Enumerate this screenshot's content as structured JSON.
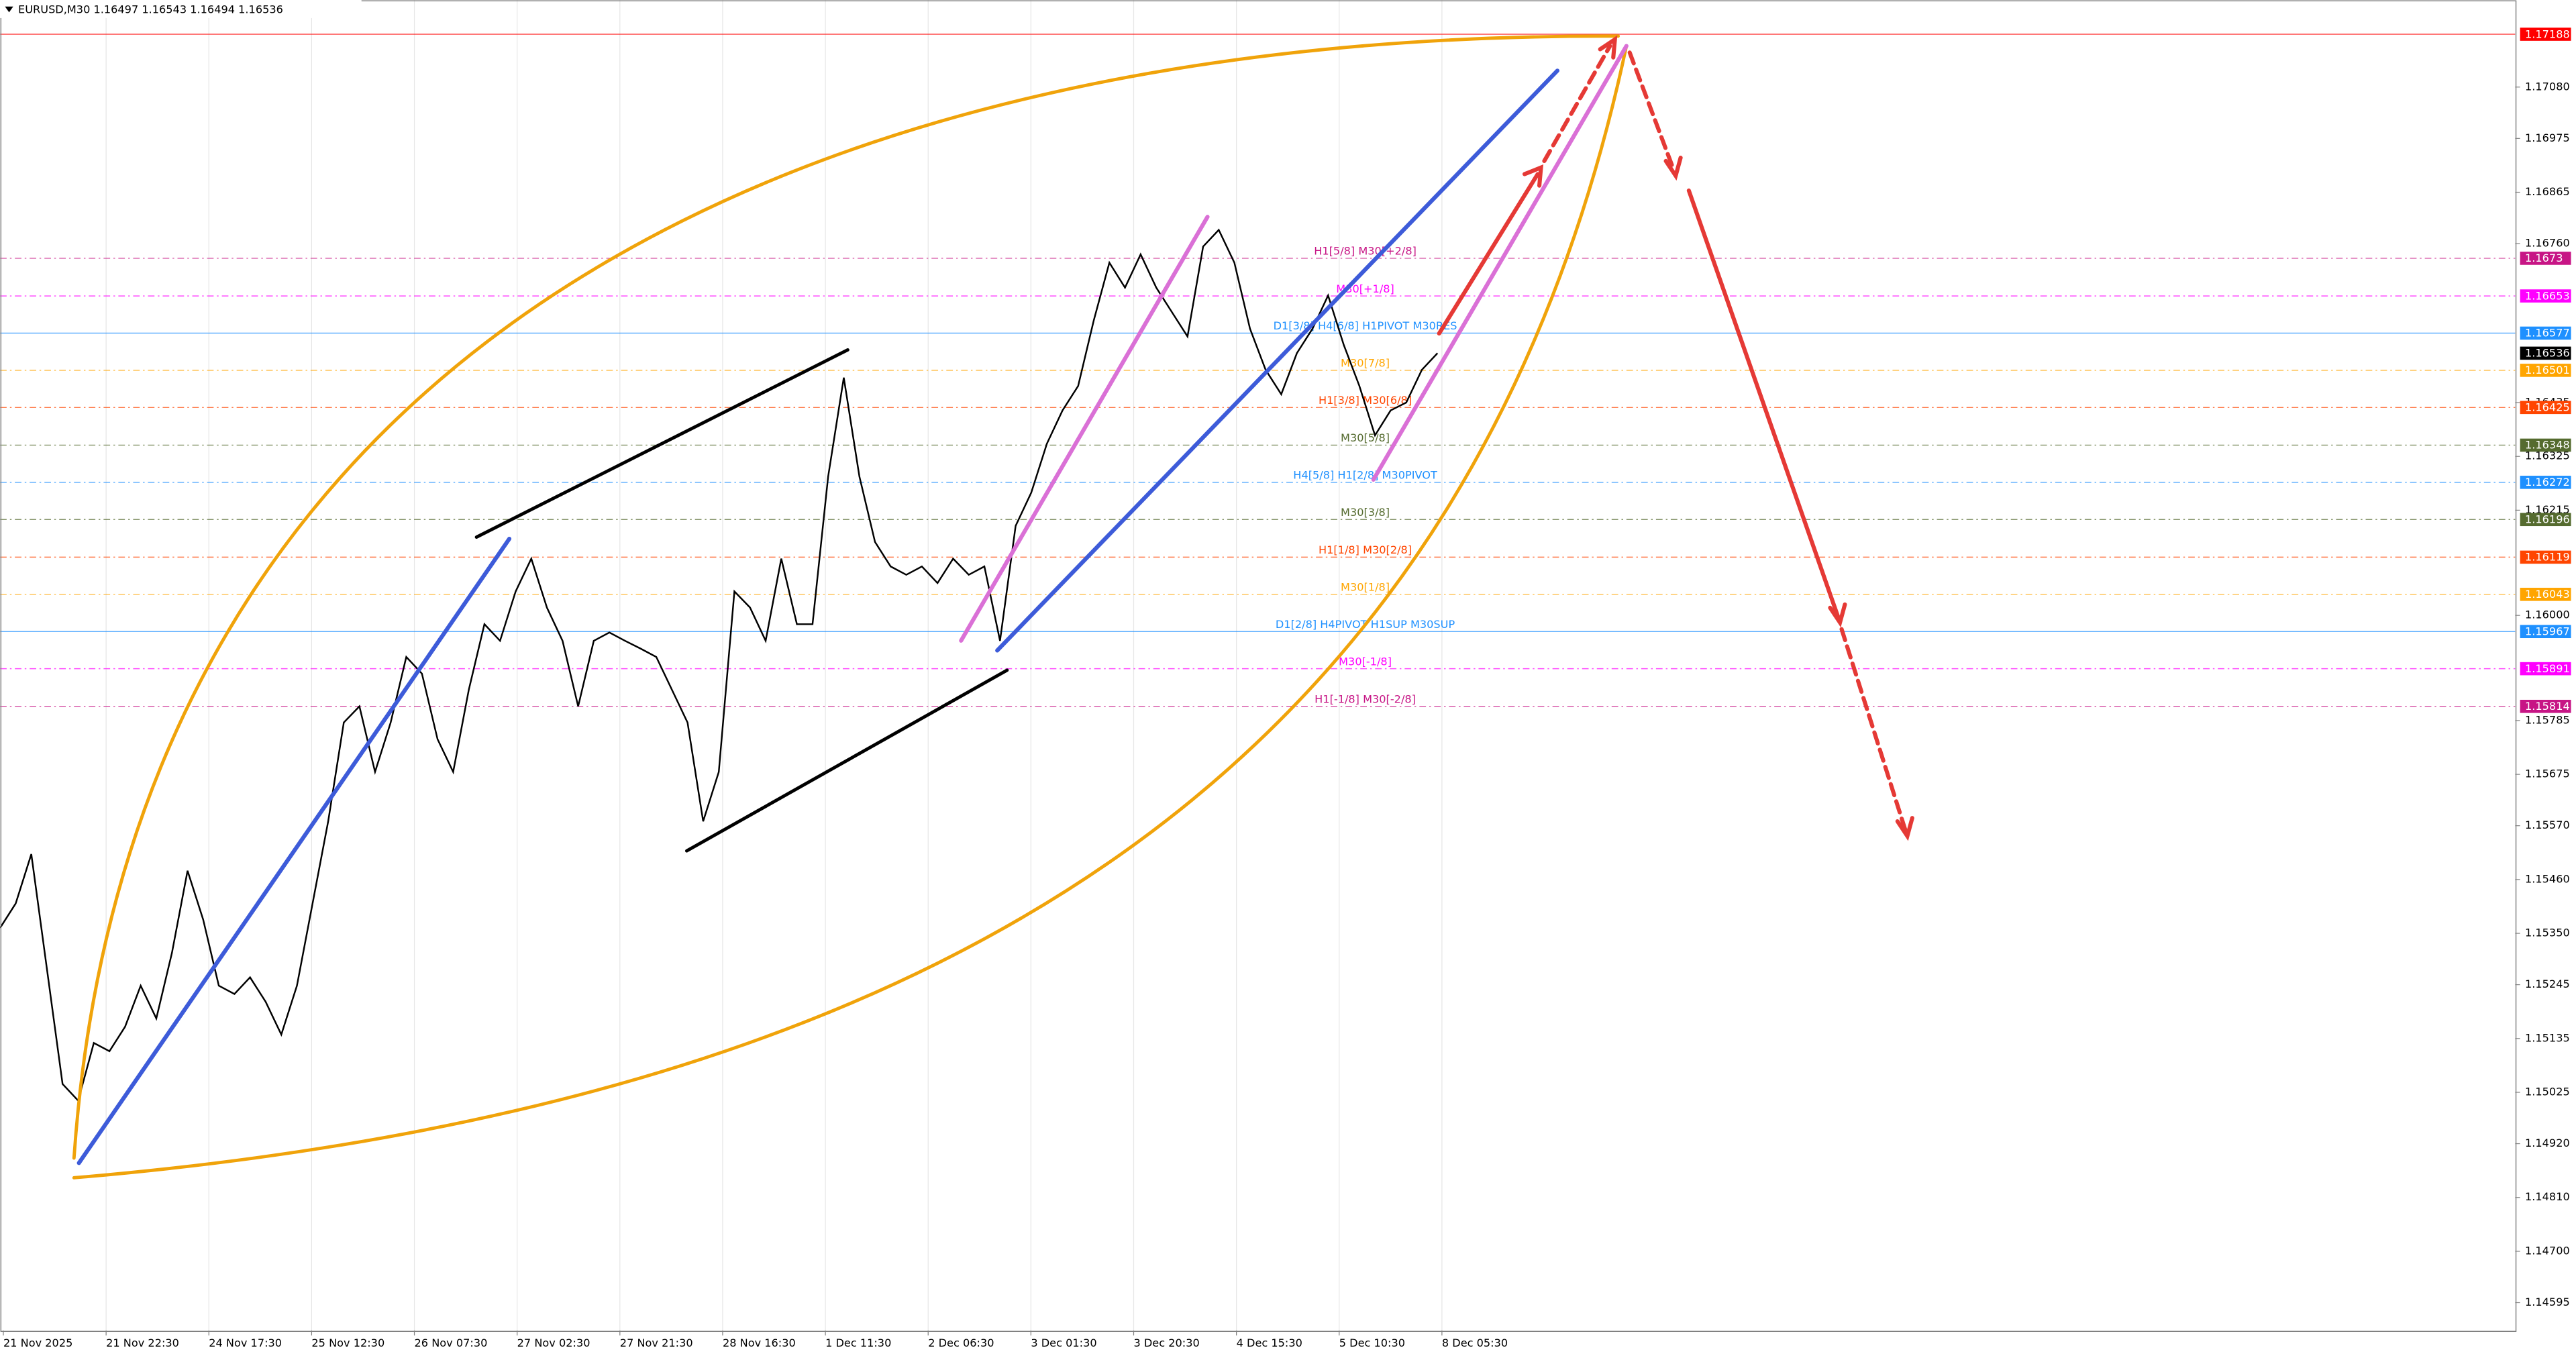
{
  "chart_data": {
    "type": "line",
    "title": "EURUSD,M30",
    "ohlc": [
      1.16497,
      1.16543,
      1.16494,
      1.16536
    ],
    "color": "#000000",
    "values": [
      1.15361,
      1.15411,
      1.15512,
      1.15277,
      1.15042,
      1.15008,
      1.15126,
      1.15109,
      1.15159,
      1.15243,
      1.15176,
      1.1531,
      1.15478,
      1.15378,
      1.15243,
      1.15226,
      1.1526,
      1.1521,
      1.15143,
      1.15243,
      1.15411,
      1.15579,
      1.15781,
      1.15814,
      1.1568,
      1.15781,
      1.15915,
      1.15881,
      1.15747,
      1.1568,
      1.15848,
      1.15982,
      1.15948,
      1.16049,
      1.16116,
      1.16016,
      1.15948,
      1.15814,
      1.15948,
      1.15965,
      1.15948,
      1.15932,
      1.15915,
      1.15848,
      1.15781,
      1.15579,
      1.1568,
      1.16049,
      1.16016,
      1.15948,
      1.16116,
      1.15982,
      1.15982,
      1.16284,
      1.16486,
      1.16284,
      1.1615,
      1.161,
      1.16083,
      1.161,
      1.16066,
      1.16116,
      1.16083,
      1.161,
      1.15948,
      1.16183,
      1.16251,
      1.16351,
      1.16419,
      1.16469,
      1.16603,
      1.16721,
      1.1667,
      1.16738,
      1.1667,
      1.1662,
      1.1657,
      1.16754,
      1.16788,
      1.16721,
      1.16586,
      1.16502,
      1.16452,
      1.16536,
      1.16586,
      1.16654,
      1.16553,
      1.16469,
      1.16368,
      1.16419,
      1.16435,
      1.16502,
      1.16536
    ],
    "xtick_labels": [
      "21 Nov 2025",
      "21 Nov 22:30",
      "24 Nov 17:30",
      "25 Nov 12:30",
      "26 Nov 07:30",
      "27 Nov 02:30",
      "27 Nov 21:30",
      "28 Nov 16:30",
      "1 Dec 11:30",
      "2 Dec 06:30",
      "3 Dec 01:30",
      "3 Dec 20:30",
      "4 Dec 15:30",
      "5 Dec 10:30",
      "8 Dec 05:30"
    ],
    "ylim": [
      1.14538,
      1.17258
    ],
    "yticks": [
      {
        "value": 1.1708,
        "label": "1.17080"
      },
      1.16975,
      1.16865,
      {
        "value": 1.1676,
        "label": "1.16760"
      },
      1.16435,
      1.16325,
      1.16215,
      {
        "value": 1.16,
        "label": "1.16000"
      },
      1.15785,
      1.15675,
      {
        "value": 1.1557,
        "label": "1.15570"
      },
      {
        "value": 1.1546,
        "label": "1.15460"
      },
      {
        "value": 1.1535,
        "label": "1.15350"
      },
      1.15245,
      1.15135,
      1.15025,
      {
        "value": 1.1492,
        "label": "1.14920"
      },
      {
        "value": 1.1481,
        "label": "1.14810"
      },
      {
        "value": 1.147,
        "label": "1.14700"
      },
      1.14595
    ],
    "levels": [
      {
        "value": 1.17188,
        "color": "#ff0000",
        "solid": true
      },
      {
        "value": 1.1673,
        "label": "H1[5/8] M30[+2/8]",
        "color": "#c71585"
      },
      {
        "value": 1.16653,
        "label": "M30[+1/8]",
        "color": "#ff00ff"
      },
      {
        "value": 1.16577,
        "label": "D1[3/8] H4[6/8] H1PIVOT M30RES",
        "color": "#1e90ff",
        "solid": true
      },
      {
        "value": 1.16501,
        "label": "M30[7/8]",
        "color": "#ffa500"
      },
      {
        "value": 1.16425,
        "label": "H1[3/8] M30[6/8]",
        "color": "#ff4500"
      },
      {
        "value": 1.16348,
        "label": "M30[5/8]",
        "color": "#556b2f"
      },
      {
        "value": 1.16272,
        "label": "H4[5/8] H1[2/8] M30PIVOT",
        "color": "#1e90ff"
      },
      {
        "value": 1.16196,
        "label": "M30[3/8]",
        "color": "#556b2f"
      },
      {
        "value": 1.16119,
        "label": "H1[1/8] M30[2/8]",
        "color": "#ff4500"
      },
      {
        "value": 1.16043,
        "label": "M30[1/8]",
        "color": "#ffa500"
      },
      {
        "value": 1.15967,
        "label": "D1[2/8] H4PIVOT H1SUP M30SUP",
        "color": "#1e90ff",
        "solid": true
      },
      {
        "value": 1.15891,
        "label": "M30[-1/8]",
        "color": "#ff00ff"
      },
      {
        "value": 1.15814,
        "label": "H1[-1/8] M30[-2/8]",
        "color": "#c71585"
      }
    ],
    "current_price": 1.16536
  }
}
